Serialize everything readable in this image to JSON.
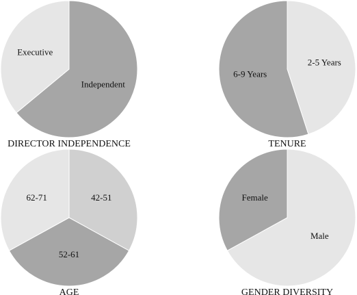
{
  "chart_data": [
    {
      "type": "pie",
      "title": "DIRECTOR INDEPENDENCE",
      "categories": [
        "Independent",
        "Executive"
      ],
      "values": [
        64,
        36
      ],
      "colors": [
        "#a6a6a6",
        "#e6e6e6"
      ]
    },
    {
      "type": "pie",
      "title": "TENURE",
      "categories": [
        "2-5 Years",
        "6-9 Years"
      ],
      "values": [
        45,
        55
      ],
      "colors": [
        "#e6e6e6",
        "#a6a6a6"
      ]
    },
    {
      "type": "pie",
      "title": "AGE",
      "categories": [
        "42-51",
        "52-61",
        "62-71"
      ],
      "values": [
        33,
        34,
        33
      ],
      "colors": [
        "#d0d0d0",
        "#a6a6a6",
        "#e6e6e6"
      ]
    },
    {
      "type": "pie",
      "title": "GENDER DIVERSITY",
      "categories": [
        "Male",
        "Female"
      ],
      "values": [
        67,
        33
      ],
      "colors": [
        "#e6e6e6",
        "#a6a6a6"
      ]
    }
  ]
}
